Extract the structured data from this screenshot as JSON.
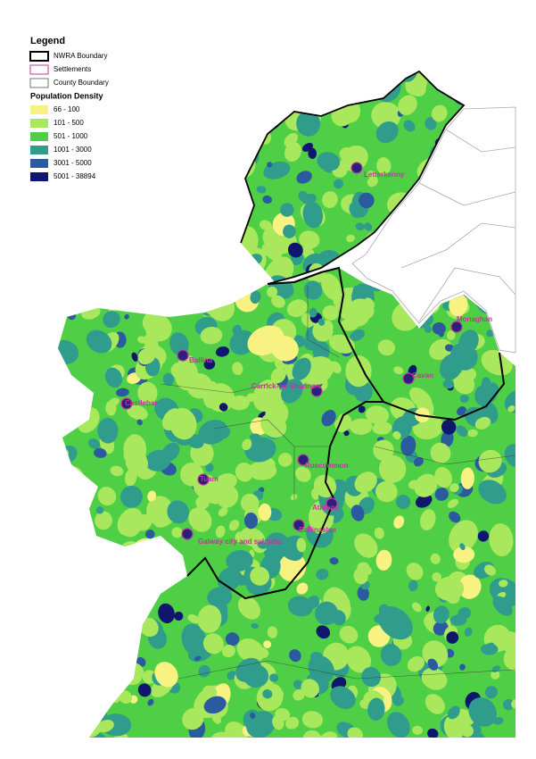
{
  "legend": {
    "title": "Legend",
    "items": [
      {
        "label": "NWRA Boundary"
      },
      {
        "label": "Settlements"
      },
      {
        "label": "County Boundary"
      }
    ],
    "density_title": "Population Density",
    "classes": [
      {
        "label": "66 - 100",
        "color": "#f8f283"
      },
      {
        "label": "101 - 500",
        "color": "#a9e85c"
      },
      {
        "label": "501 - 1000",
        "color": "#4fcf45"
      },
      {
        "label": "1001 - 3000",
        "color": "#2f9c8c"
      },
      {
        "label": "3001 - 5000",
        "color": "#2a5b9e"
      },
      {
        "label": "5001 - 38894",
        "color": "#10166e"
      }
    ]
  },
  "settlements": [
    "Letterkenny",
    "Monaghan",
    "Ballina",
    "Carrick-on-Shannon",
    "Cavan",
    "Castlebar",
    "Roscommon",
    "Tuam",
    "Athlone",
    "Ballinasloe",
    "Galway city and suburbs"
  ]
}
